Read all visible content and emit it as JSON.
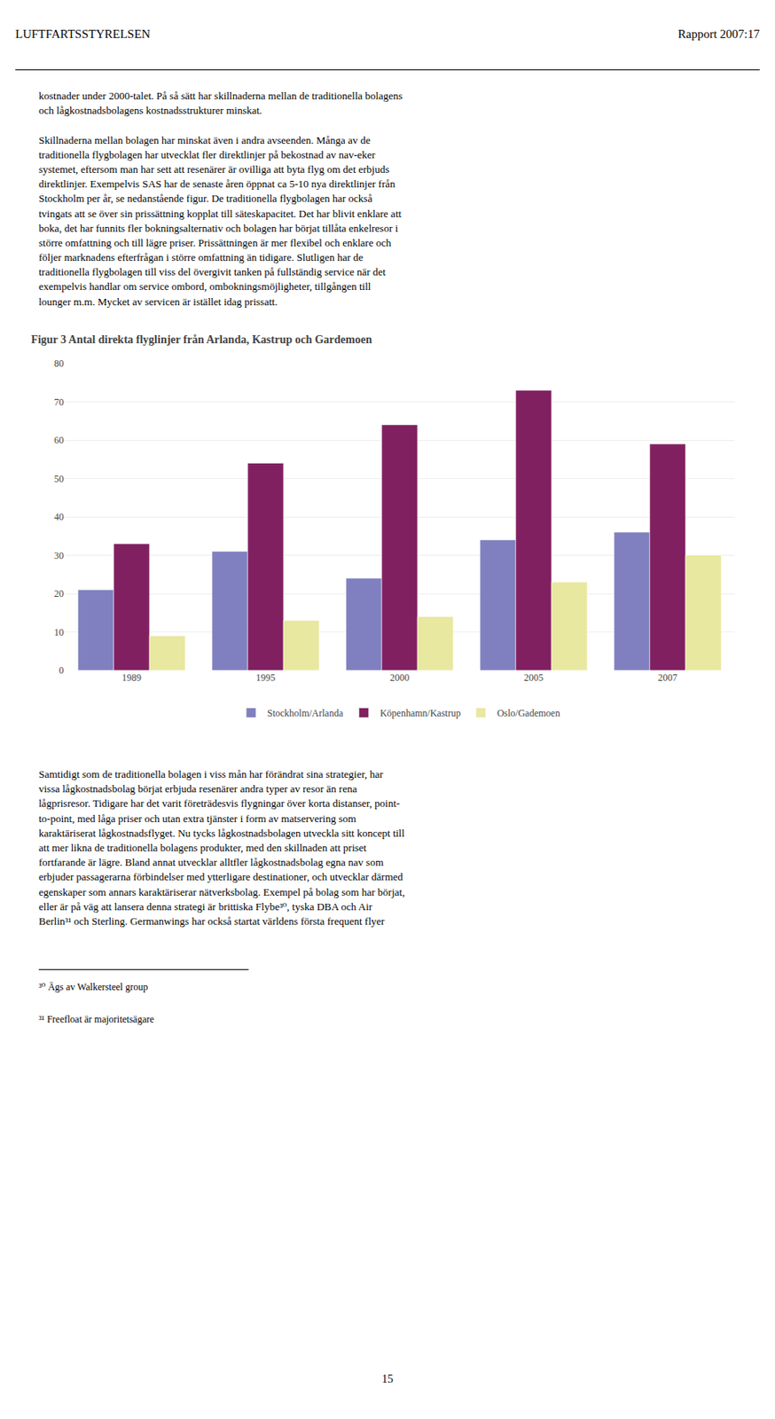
{
  "chart_data": {
    "type": "bar",
    "title": "Figur 3 Antal direkta flyglinjer från Arlanda, Kastrup och Gardemoen",
    "categories": [
      "1989",
      "1995",
      "2000",
      "2005",
      "2007"
    ],
    "series": [
      {
        "name": "Stockholm/Arlanda",
        "color": "#8080c0",
        "values": [
          21,
          31,
          24,
          34,
          36
        ]
      },
      {
        "name": "Köpenhamn/Kastrup",
        "color": "#802060",
        "values": [
          33,
          54,
          64,
          73,
          59
        ]
      },
      {
        "name": "Oslo/Gademoen",
        "color": "#e8e8a0",
        "values": [
          9,
          13,
          14,
          23,
          30
        ]
      }
    ],
    "ylim": [
      0,
      80
    ],
    "yticks": [
      0,
      10,
      20,
      30,
      40,
      50,
      60,
      70,
      80
    ],
    "grid": true,
    "legend": "bottom",
    "annotations": [
      "LUFTFARTSSTYRELSEN",
      "Rapport 2007:17",
      "kostnader under 2000-talet. På så sätt har skillnaderna mellan de traditionella bolagens\noch lågkostnadsbolagens kostnadsstrukturer minskat.\n\nSkillnaderna mellan bolagen har minskat även i andra avseenden. Många av de\ntraditionella flygbolagen har utvecklat fler direktlinjer på bekostnad av nav-eker\nsystemet, eftersom man har sett att resenärer är ovilliga att byta flyg om det erbjuds\ndirektlinjer. Exempelvis SAS har de senaste åren öppnat ca 5-10 nya direktlinjer från\nStockholm per år, se nedanstående figur. De traditionella flygbolagen har också\ntvingats att se över sin prissättning kopplat till säteskapacitet. Det har blivit enklare att\nboka, det har funnits fler bokningsalternativ och bolagen har börjat tillåta enkelresor i\nstörre omfattning och till lägre priser. Prissättningen är mer flexibel och enklare och\nföljer marknadens efterfrågan i större omfattning än tidigare. Slutligen har de\ntraditionella flygbolagen till viss del övergivit tanken på fullständig service när det\nexempelvis handlar om service ombord, ombokningsmöjligheter, tillgången till\nlounger m.m. Mycket av servicen är istället idag prissatt.",
      "Samtidigt som de traditionella bolagen i viss mån har förändrat sina strategier, har\nvissa lågkostnadsbolag börjat erbjuda resenärer andra typer av resor än rena\nlågprisresor. Tidigare har det varit företrädesvis flygningar över korta distanser, point-\nto-point, med låga priser och utan extra tjänster i form av matservering som\nkaraktäriserat lågkostnadsflyget. Nu tycks lågkostnadsbolagen utveckla sitt koncept till\natt mer likna de traditionella bolagens produkter, med den skillnaden att priset\nfortfarande är lägre. Bland annat utvecklar alltfler lågkostnadsbolag egna nav som\nerbjuder passagerarna förbindelser med ytterligare destinationer, och utvecklar därmed\negenskaper som annars karaktäriserar nätverksbolag. Exempel på bolag som har börjat,\neller är på väg att lansera denna strategi är brittiska Flybe³⁰, tyska DBA och Air\nBerlin³¹ och Sterling. Germanwings har också startat världens första frequent flyer",
      "³⁰ Ägs av Walkersteel group",
      "³¹ Freefloat är majoritetsägare",
      "15"
    ]
  }
}
